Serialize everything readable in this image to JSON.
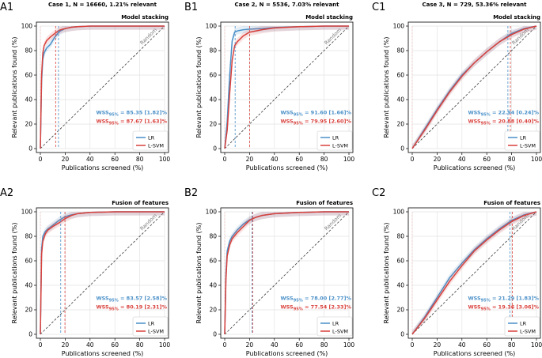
{
  "figure": {
    "random_label": "Random",
    "xlabel": "Publications screened (%)",
    "ylabel": "Relevant publications found (%)",
    "xticks": [
      0,
      20,
      40,
      60,
      80,
      100
    ],
    "yticks": [
      0,
      20,
      40,
      60,
      80,
      100
    ],
    "wss_prefix": "WSS",
    "wss_subscript": "95%",
    "colors": {
      "LR": "#4a90c8",
      "L-SVM": "#d9413c",
      "random": "#3a3a3a"
    }
  },
  "chart_data": [
    {
      "panel": "A1",
      "title": "Case 1, N = 16660, 1.21% relevant",
      "stage": "Model stacking",
      "type": "line",
      "xlim": [
        0,
        100
      ],
      "ylim": [
        0,
        100
      ],
      "grid": true,
      "legend": "bottom-right",
      "vlines": {
        "LR": 14.6,
        "L-SVM": 12.3
      },
      "wss": [
        {
          "series": "LR",
          "text": "= 85.35 [1.82]%"
        },
        {
          "series": "L-SVM",
          "text": "= 87.67 [1.63]%"
        }
      ],
      "series": [
        {
          "name": "LR",
          "x": [
            0,
            1,
            2,
            3,
            5,
            8,
            11,
            14,
            16,
            18,
            20,
            25,
            30,
            40,
            100
          ],
          "y": [
            0,
            55,
            73,
            78,
            82,
            85,
            90,
            94,
            96,
            97,
            98,
            99,
            99.5,
            100,
            100
          ]
        },
        {
          "name": "L-SVM",
          "x": [
            0,
            1,
            2,
            3,
            5,
            8,
            11,
            13,
            15,
            18,
            20,
            25,
            30,
            40,
            100
          ],
          "y": [
            0,
            60,
            78,
            84,
            88,
            91,
            93.5,
            95,
            96.5,
            97.5,
            98,
            99,
            99.5,
            100,
            100
          ]
        }
      ]
    },
    {
      "panel": "B1",
      "title": "Case 2, N = 5536, 7.03% relevant",
      "stage": "Model stacking",
      "type": "line",
      "xlim": [
        0,
        100
      ],
      "ylim": [
        0,
        100
      ],
      "grid": true,
      "legend": "bottom-right",
      "vlines": {
        "LR": 8.4,
        "L-SVM": 20.0
      },
      "wss": [
        {
          "series": "LR",
          "text": "= 91.60 [1.66]%"
        },
        {
          "series": "L-SVM",
          "text": "= 79.95 [2.60]%"
        }
      ],
      "series": [
        {
          "name": "LR",
          "x": [
            0,
            2,
            4,
            6,
            8,
            10,
            15,
            20,
            30,
            40,
            60,
            80,
            100
          ],
          "y": [
            0,
            22,
            60,
            88,
            95,
            96,
            97,
            97.5,
            98,
            98.8,
            99.5,
            100,
            100
          ]
        },
        {
          "name": "L-SVM",
          "x": [
            0,
            2,
            4,
            6,
            8,
            10,
            15,
            20,
            30,
            40,
            60,
            80,
            100
          ],
          "y": [
            0,
            15,
            45,
            72,
            84,
            87,
            92,
            95,
            97,
            98.5,
            99.5,
            100,
            100
          ]
        }
      ]
    },
    {
      "panel": "C1",
      "title": "Case 3, N = 729, 53.36% relevant",
      "stage": "Model stacking",
      "type": "line",
      "xlim": [
        0,
        100
      ],
      "ylim": [
        0,
        100
      ],
      "grid": true,
      "legend": "bottom-right",
      "vlines": {
        "LR": 77.0,
        "L-SVM": 79.0
      },
      "wss": [
        {
          "series": "LR",
          "text": "= 22.94 [0.24]%"
        },
        {
          "series": "L-SVM",
          "text": "= 20.88 [0.40]%"
        }
      ],
      "series": [
        {
          "name": "LR",
          "x": [
            0,
            10,
            20,
            30,
            40,
            50,
            60,
            70,
            80,
            90,
            100
          ],
          "y": [
            0,
            16,
            32,
            47,
            60,
            70,
            79,
            87,
            94,
            98,
            100
          ]
        },
        {
          "name": "L-SVM",
          "x": [
            0,
            10,
            20,
            30,
            40,
            50,
            60,
            70,
            80,
            90,
            100
          ],
          "y": [
            0,
            15,
            31,
            46,
            59,
            70,
            79,
            87,
            93,
            97.5,
            100
          ]
        }
      ]
    },
    {
      "panel": "A2",
      "title": "",
      "stage": "Fusion of features",
      "type": "line",
      "xlim": [
        0,
        100
      ],
      "ylim": [
        0,
        100
      ],
      "grid": true,
      "legend": "bottom-right",
      "vlines": {
        "LR": 16.4,
        "L-SVM": 19.8
      },
      "wss": [
        {
          "series": "LR",
          "text": "= 83.57 [2.58]%"
        },
        {
          "series": "L-SVM",
          "text": "= 80.19 [2.31]%"
        }
      ],
      "series": [
        {
          "name": "LR",
          "x": [
            0,
            1,
            2,
            4,
            6,
            10,
            15,
            20,
            25,
            30,
            40,
            60,
            100
          ],
          "y": [
            0,
            70,
            80,
            84,
            86,
            89,
            93,
            96,
            97.5,
            98.5,
            99.5,
            100,
            100
          ]
        },
        {
          "name": "L-SVM",
          "x": [
            0,
            1,
            2,
            4,
            6,
            10,
            15,
            20,
            25,
            30,
            40,
            60,
            100
          ],
          "y": [
            0,
            65,
            76,
            82,
            85,
            88,
            91,
            94.5,
            97,
            98.5,
            99.5,
            100,
            100
          ]
        }
      ]
    },
    {
      "panel": "B2",
      "title": "",
      "stage": "Fusion of features",
      "type": "line",
      "xlim": [
        0,
        100
      ],
      "ylim": [
        0,
        100
      ],
      "grid": true,
      "legend": "bottom-right",
      "vlines": {
        "LR": 22.0,
        "L-SVM": 22.5
      },
      "wss": [
        {
          "series": "LR",
          "text": "= 78.00 [2.77]%"
        },
        {
          "series": "L-SVM",
          "text": "= 77.54 [2.33]%"
        }
      ],
      "series": [
        {
          "name": "LR",
          "x": [
            0,
            1,
            2,
            4,
            6,
            10,
            15,
            20,
            25,
            30,
            40,
            60,
            80,
            100
          ],
          "y": [
            0,
            50,
            68,
            76,
            80,
            85,
            90,
            93.5,
            95.5,
            97,
            98.5,
            99.5,
            100,
            100
          ]
        },
        {
          "name": "L-SVM",
          "x": [
            0,
            1,
            2,
            4,
            6,
            10,
            15,
            20,
            25,
            30,
            40,
            60,
            80,
            100
          ],
          "y": [
            0,
            45,
            64,
            73,
            78,
            83,
            88,
            93,
            95.5,
            97,
            98.5,
            99.5,
            100,
            100
          ]
        }
      ]
    },
    {
      "panel": "C2",
      "title": "",
      "stage": "Fusion of features",
      "type": "line",
      "xlim": [
        0,
        100
      ],
      "ylim": [
        0,
        100
      ],
      "grid": true,
      "legend": "bottom-right",
      "vlines": {
        "LR": 78.7,
        "L-SVM": 80.6
      },
      "wss": [
        {
          "series": "LR",
          "text": "= 21.29 [1.83]%"
        },
        {
          "series": "L-SVM",
          "text": "= 19.36 [3.06]%"
        }
      ],
      "series": [
        {
          "name": "LR",
          "x": [
            0,
            10,
            20,
            30,
            40,
            50,
            60,
            70,
            80,
            90,
            100
          ],
          "y": [
            0,
            14,
            30,
            46,
            58,
            69,
            78,
            86,
            93,
            97.5,
            100
          ]
        },
        {
          "name": "L-SVM",
          "x": [
            0,
            10,
            20,
            30,
            40,
            50,
            60,
            70,
            80,
            90,
            100
          ],
          "y": [
            0,
            13,
            28,
            43,
            56,
            68,
            77,
            85,
            92,
            97,
            100
          ]
        }
      ]
    }
  ]
}
